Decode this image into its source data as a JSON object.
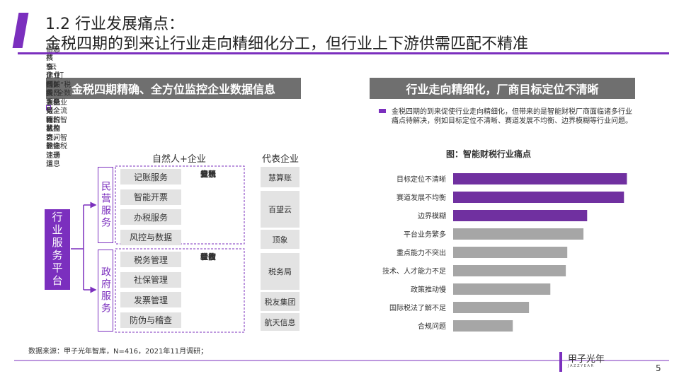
{
  "header": {
    "section": "1.2 行业发展痛点：",
    "title": "金税四期的到来让行业走向精细化分工，但行业上下游供需匹配不精准"
  },
  "left": {
    "heading": "金税四期精确、全方位监控企业数据信息",
    "bullets": [
      "“非税”：业务更全面的监控",
      "信息共享：建立各部委、人民银行、机构之间的快速通道",
      "信息核查：企业相关人员手机号、纳税状态、登记注册信息",
      "“云化”打通：“税费”全数据全业务全流程，智慧监管、智能办税"
    ],
    "columns": [
      "自然人+企业",
      "代表企业"
    ],
    "platform": "行业服务平台",
    "groups": [
      {
        "label": "民营服务",
        "items": [
          "记账服务",
          "智能开票",
          "办税服务",
          "风控与数据"
        ],
        "functions": [
          "记账",
          "代账",
          "发票",
          "报销",
          "算税",
          "交税",
          "分析"
        ]
      },
      {
        "label": "政府服务",
        "items": [
          "税务管理",
          "社保管理",
          "发票管理",
          "防伪与稽查"
        ],
        "functions": [
          "税收",
          "税控",
          "征管",
          "缴费",
          "上传",
          "公示",
          "验伤"
        ]
      }
    ],
    "companies": [
      "慧算账",
      "百望云",
      "顶象",
      "税务局",
      "税友集团",
      "航天信息"
    ]
  },
  "right": {
    "heading": "行业走向精细化，厂商目标定位不清晰",
    "bullet": "金税四期的到来促使行业走向精细化，但带来的是智能财税厂商面临诸多行业痛点待解决，例如目标定位不清晰、赛道发展不均衡、边界模糊等行业问题。"
  },
  "chart_data": {
    "type": "bar",
    "orientation": "horizontal",
    "title": "图：智能财税行业痛点",
    "categories": [
      "目标定位不清晰",
      "赛道发展不均衡",
      "边界模糊",
      "平台业务繁多",
      "重点能力不突出",
      "技术、人才能力不足",
      "政策推动慢",
      "国际税法了解不足",
      "合规问题"
    ],
    "values": [
      236,
      232,
      182,
      177,
      155,
      153,
      132,
      103,
      81
    ],
    "colors": [
      "#7030a0",
      "#7030a0",
      "#7030a0",
      "#a6a6a6",
      "#a6a6a6",
      "#a6a6a6",
      "#a6a6a6",
      "#a6a6a6",
      "#a6a6a6"
    ],
    "xlim": [
      0,
      250
    ]
  },
  "footer": {
    "source": "数据来源：甲子光年智库，N=416，2021年11月调研；",
    "logo": "甲子光年",
    "logo_sub": "J A Z Z Y E A R",
    "page": "5"
  }
}
